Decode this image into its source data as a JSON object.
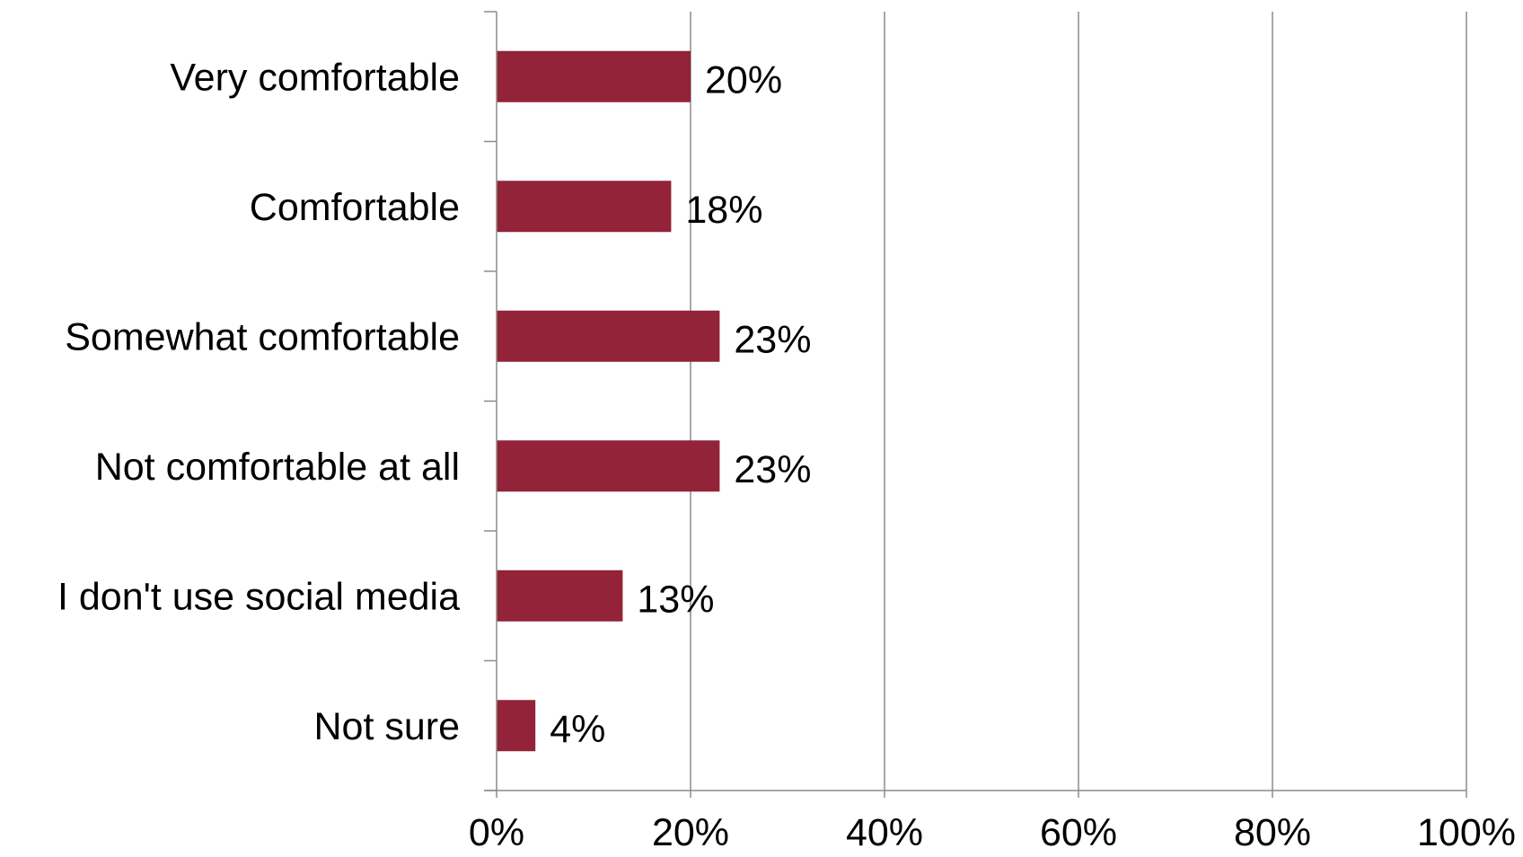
{
  "chart_data": {
    "type": "bar",
    "orientation": "horizontal",
    "categories": [
      "Very comfortable",
      "Comfortable",
      "Somewhat comfortable",
      "Not comfortable at all",
      "I don't use social media",
      "Not sure"
    ],
    "values": [
      20,
      18,
      23,
      23,
      13,
      4
    ],
    "data_labels": [
      "20%",
      "18%",
      "23%",
      "23%",
      "13%",
      "4%"
    ],
    "x_ticks": [
      "0%",
      "20%",
      "40%",
      "60%",
      "80%",
      "100%"
    ],
    "xlim": [
      0,
      100
    ],
    "title": "",
    "xlabel": "",
    "ylabel": "",
    "grid": "vertical",
    "legend": "none",
    "bar_color": "#922338",
    "grid_color": "#8c8c8c"
  }
}
